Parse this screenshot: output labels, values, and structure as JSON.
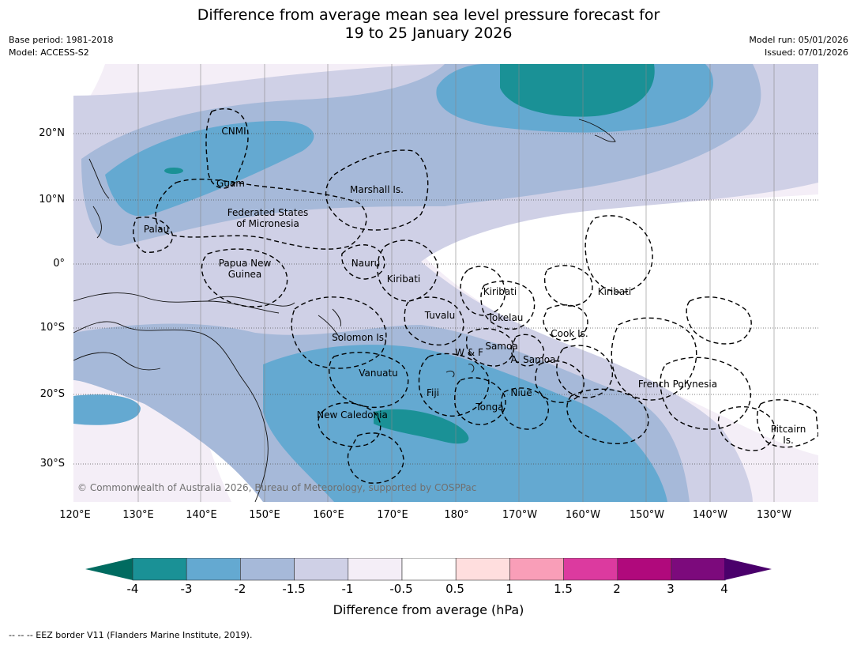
{
  "header": {
    "title_line1": "Difference from average mean sea level pressure forecast for",
    "title_line2": "19 to 25 January 2026",
    "base_period": "Base period: 1981-2018",
    "model": "Model: ACCESS-S2",
    "model_run": "Model run: 05/01/2026",
    "issued": "Issued: 07/01/2026"
  },
  "axes": {
    "lat_labels": [
      "20°N",
      "10°N",
      "0°",
      "10°S",
      "20°S",
      "30°S"
    ],
    "lon_labels": [
      "120°E",
      "130°E",
      "140°E",
      "150°E",
      "160°E",
      "170°E",
      "180°",
      "170°W",
      "160°W",
      "150°W",
      "140°W",
      "130°W"
    ]
  },
  "regions": {
    "cnmi": "CNMI",
    "guam": "Guam",
    "marshall": "Marshall Is.",
    "fsm_1": "Federated States",
    "fsm_2": "of Micronesia",
    "palau": "Palau",
    "png_1": "Papua New",
    "png_2": "Guinea",
    "nauru": "Nauru",
    "kiribati_w": "Kiribati",
    "kiribati_c": "Kiribati",
    "kiribati_e": "Kiribati",
    "tuvalu": "Tuvalu",
    "tokelau": "Tokelau",
    "cook": "Cook Is.",
    "solomon": "Solomon Is.",
    "samoa": "Samoa",
    "wf": "W & F",
    "asamoa": "A. Samoa",
    "vanuatu": "Vanuatu",
    "fiji": "Fiji",
    "niue": "Niue",
    "tonga": "Tonga",
    "newcal": "New Caledonia",
    "frenchpoly": "French Polynesia",
    "pitcairn_1": "Pitcairn",
    "pitcairn_2": "Is."
  },
  "copyright": "© Commonwealth of Australia 2026, Bureau of Meteorology, supported by COSPPac",
  "legend": {
    "ticks": [
      "-4",
      "-3",
      "-2",
      "-1.5",
      "-1",
      "-0.5",
      "0.5",
      "1",
      "1.5",
      "2",
      "3",
      "4"
    ],
    "colors": [
      "#1a9196",
      "#64a9d1",
      "#a6b9d9",
      "#cfd0e6",
      "#f4eef7",
      "#ffffff",
      "#ffdede",
      "#f99eb8",
      "#dc3a9f",
      "#b0097c",
      "#7c0a7c"
    ],
    "under_color": "#006b60",
    "over_color": "#4a006b",
    "label": "Difference from average (hPa)"
  },
  "footnote": "--  --  -- EEZ border V11 (Flanders Marine Institute, 2019)."
}
